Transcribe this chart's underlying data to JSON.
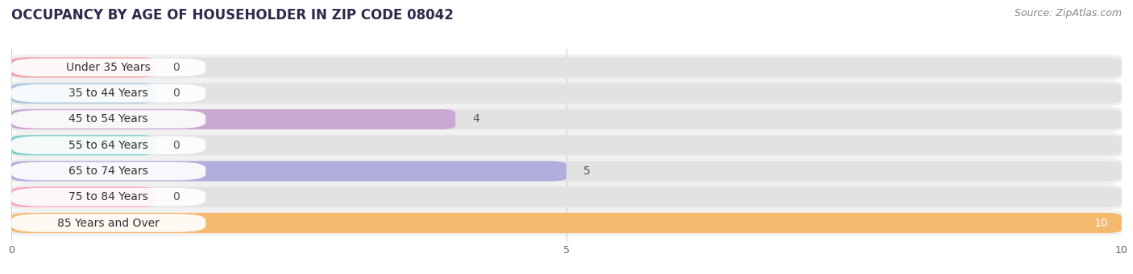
{
  "title": "OCCUPANCY BY AGE OF HOUSEHOLDER IN ZIP CODE 08042",
  "source": "Source: ZipAtlas.com",
  "categories": [
    "Under 35 Years",
    "35 to 44 Years",
    "45 to 54 Years",
    "55 to 64 Years",
    "65 to 74 Years",
    "75 to 84 Years",
    "85 Years and Over"
  ],
  "values": [
    0,
    0,
    4,
    0,
    5,
    0,
    10
  ],
  "bar_colors": [
    "#f4a0a8",
    "#a8c4e0",
    "#c9a8d4",
    "#7ecece",
    "#b0aedd",
    "#f9a8c0",
    "#f5b96e"
  ],
  "xlim": [
    0,
    10
  ],
  "xticks": [
    0,
    5,
    10
  ],
  "bg_color": "#ffffff",
  "row_bg_color": "#f0f0f0",
  "title_fontsize": 12,
  "source_fontsize": 9,
  "label_fontsize": 10,
  "value_fontsize": 10,
  "value_inside_color": "#ffffff",
  "value_outside_color": "#555555"
}
